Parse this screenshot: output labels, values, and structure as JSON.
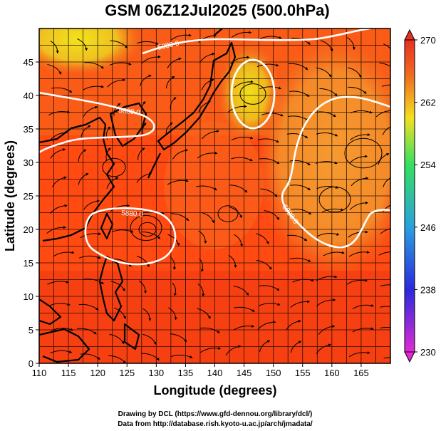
{
  "title": "GSM 06Z12Jul2025 (500.0hPa)",
  "x_axis": {
    "label": "Longitude (degrees)",
    "range": [
      110,
      170
    ],
    "ticks": [
      "110",
      "115",
      "120",
      "125",
      "130",
      "135",
      "140",
      "145",
      "150",
      "155",
      "160",
      "165"
    ]
  },
  "y_axis": {
    "label": "Latitude  (degrees)",
    "range": [
      0,
      50
    ],
    "ticks": [
      "0",
      "5",
      "10",
      "15",
      "20",
      "25",
      "30",
      "35",
      "40",
      "45"
    ]
  },
  "colorbar": {
    "ticks": [
      "230",
      "238",
      "246",
      "254",
      "262",
      "270"
    ],
    "min": 230,
    "max": 270,
    "colors": [
      "#e22ad4",
      "#2a2adc",
      "#2aa0e0",
      "#34e060",
      "#f4e020",
      "#f07020",
      "#e83020"
    ]
  },
  "contour_labels": [
    "5880.0",
    "5880.0",
    "5880.0",
    "5880.0"
  ],
  "credits": {
    "line1": "Drawing by DCL (https://www.gfd-dennou.org/library/dcl/)",
    "line2": "Data from http://database.rish.kyoto-u.ac.jp/arch/jmadata/"
  },
  "colors": {
    "warm_field": "#ff4a10",
    "orange_field": "#f88a22",
    "yellow_field": "#f0dc20",
    "coastline": "#000000",
    "contour": "#ffffff",
    "grid": "#000000"
  }
}
